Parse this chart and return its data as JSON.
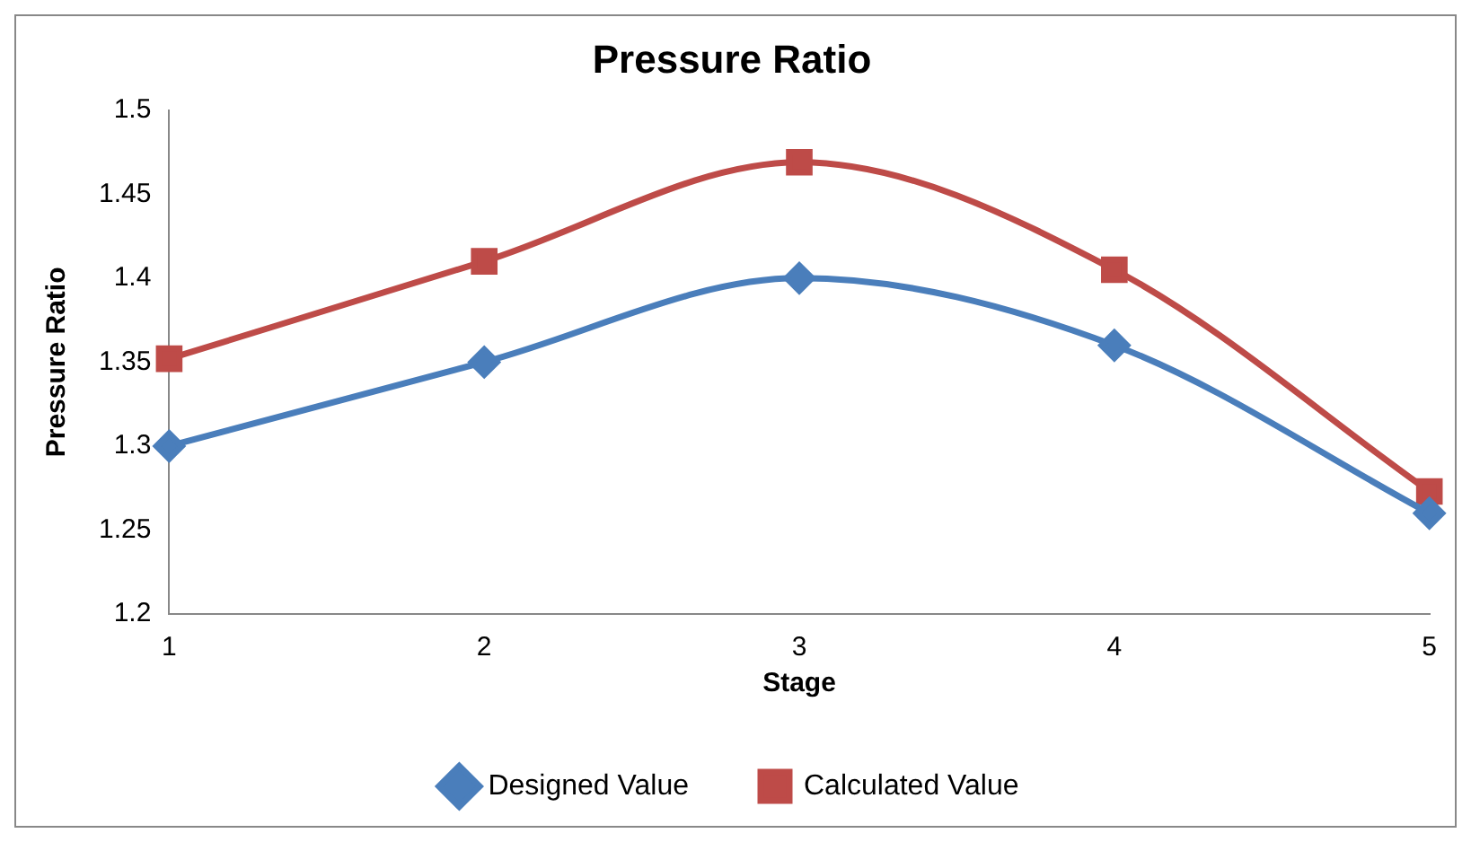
{
  "chart_data": {
    "type": "line",
    "title": "Pressure Ratio",
    "xlabel": "Stage",
    "ylabel": "Pressure Ratio",
    "categories": [
      "1",
      "2",
      "3",
      "4",
      "5"
    ],
    "series": [
      {
        "name": "Designed Value",
        "color": "#4a7ebb",
        "marker": "diamond",
        "values": [
          1.3,
          1.35,
          1.4,
          1.36,
          1.26
        ]
      },
      {
        "name": "Calculated Value",
        "color": "#be4b48",
        "marker": "square",
        "values": [
          1.352,
          1.41,
          1.469,
          1.405,
          1.273
        ]
      }
    ],
    "ylim": [
      1.2,
      1.5
    ],
    "yticks": [
      1.2,
      1.25,
      1.3,
      1.35,
      1.4,
      1.45,
      1.5
    ],
    "grid": false,
    "legend": "bottom"
  }
}
